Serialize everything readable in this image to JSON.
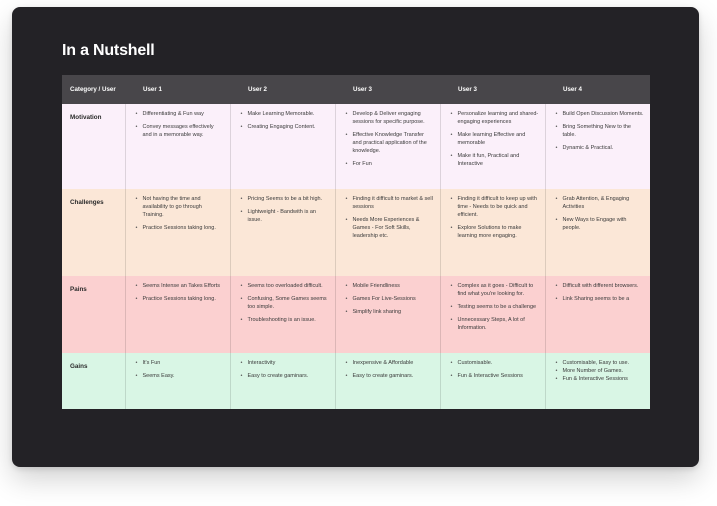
{
  "title": "In a Nutshell",
  "colors": {
    "motivation": "#fbf0fa",
    "challenges": "#fbe7d7",
    "pains": "#fbd0d0",
    "gains": "#d9f6e5",
    "header": "#48464a",
    "card": "#232226"
  },
  "headers": [
    "Category / User",
    "User 1",
    "User 2",
    "User 3",
    "User 3",
    "User 4"
  ],
  "rows": [
    {
      "category": "Motivation",
      "cells": [
        [
          "Differentiating & Fun way",
          "Convey messages effectively and in a memorable way."
        ],
        [
          "Make Learning Memorable.",
          "Creating Engaging Content."
        ],
        [
          "Develop & Deliver engaging sessions for specific purpose.",
          "Effective Knowledge Transfer and practical application of the knowledge.",
          "For Fun"
        ],
        [
          "Personalize learning and shared-engaging experiences",
          "Make learning Effective and memorable",
          "Make it fun, Practical and Interactive"
        ],
        [
          "Build Open Discussion Moments.",
          "Bring Something New to the table.",
          "Dynamic & Practical."
        ]
      ]
    },
    {
      "category": "Challenges",
      "cells": [
        [
          "Not having the time and availability to go through Training.",
          "Practice Sessions taking long."
        ],
        [
          "Pricing Seems to be a bit high.",
          "Lightweight - Bandwith is an issue."
        ],
        [
          "Finding it difficult to market & sell sessions",
          "Needs More Experiences & Games - For Soft Skills, leadership etc."
        ],
        [
          "Finding it difficult to keep up with time - Needs to be quick and efficient.",
          "Explore Solutions to make learning more engaging."
        ],
        [
          "Grab Attention, & Engaging Activities",
          "New Ways to Engage with people."
        ]
      ]
    },
    {
      "category": "Pains",
      "cells": [
        [
          "Seems Intense  an Takes Efforts",
          "Practice Sessions taking long."
        ],
        [
          "Seems too overloaded difficult.",
          "Confusing, Some Games seems too simple.",
          "Troubleshooting is an issue."
        ],
        [
          "Mobile Friendliness",
          "Games For Live-Sessions",
          "Simplify link sharing"
        ],
        [
          "Complex as it goes - Difficult to find what you're looking for.",
          "Testing seems to be a challenge",
          "Unnecessary Steps, A lot of Information."
        ],
        [
          "Difficult with different browsers.",
          "Link Sharing seems to be a"
        ]
      ]
    },
    {
      "category": "Gains",
      "cells": [
        [
          "It's Fun",
          "Seems Easy."
        ],
        [
          "Interactivity",
          "Easy to create gaminars."
        ],
        [
          "Inexpensive & Affordable",
          "Easy to create gaminars."
        ],
        [
          "Customisable.",
          "Fun & Interactive Sessions"
        ],
        [
          "Customisable, Easy to use.",
          "More Number of Games.",
          "Fun & Interactive Sessions"
        ]
      ]
    }
  ]
}
